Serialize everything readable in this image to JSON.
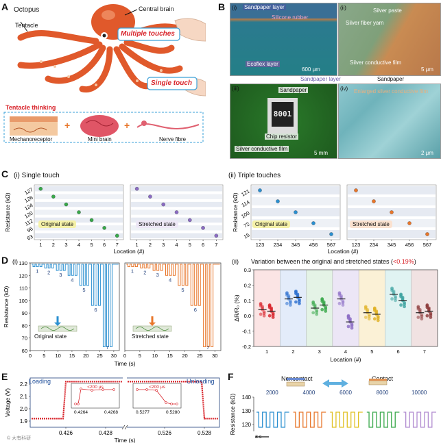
{
  "panelA": {
    "letter": "A",
    "octopus": "Octopus",
    "central_brain": "Central brain",
    "tentacle": "Tentacle",
    "multiple_touches": "Multiple touches",
    "single_touch": "Single touch",
    "tentacle_thinking": "Tentacle thinking",
    "mechanoreceptor": "Mechanoreceptor",
    "mini_brain": "Mini brain",
    "nerve_fibre": "Nerve fibre"
  },
  "panelB": {
    "letter": "B",
    "i": {
      "tag": "(i)",
      "sandpaper_layer": "Sandpaper layer",
      "silicone_rubber": "Silicone rubber",
      "ecoflex_layer": "Ecoflex layer",
      "scale": "600 μm"
    },
    "ii": {
      "tag": "(ii)",
      "silver_paste": "Silver paste",
      "silver_fiber_yarn": "Silver fiber yarn",
      "silver_film": "Silver conductive film",
      "scale": "5 μm"
    },
    "mid_sandpaper_layer": "Sandpaper layer",
    "mid_sandpaper": "Sandpaper",
    "iii": {
      "tag": "(iii)",
      "sandpaper": "Sandpaper",
      "chip_code": "8001",
      "chip_resistor": "Chip resistor",
      "silver_film": "Silver conductive film",
      "scale": "5 mm"
    },
    "iv": {
      "tag": "(iv)",
      "enlarged": "Enlarged silver conductive film",
      "scale": "2 μm"
    }
  },
  "panelC": {
    "letter": "C",
    "i_title": "(i) Single touch",
    "ii_title": "(ii) Triple touches",
    "ylabel": "Resistance (kΩ)",
    "xlabel": "Location (#)",
    "original": "Original state",
    "stretched": "Stretched state"
  },
  "panelD": {
    "letter": "D",
    "i_tag": "(i)",
    "ylabel": "Resistance (kΩ)",
    "xlabel": "Time (s)",
    "original": "Original state",
    "stretched": "Stretched state",
    "ii_tag": "(ii)",
    "ii_title_main": "Variation between the original and stretched states (",
    "ii_title_red": "<0.19%",
    "ii_title_end": ")",
    "ii_ylabel": "ΔR/R₀ (%)",
    "ii_xlabel": "Location (#)"
  },
  "panelE": {
    "letter": "E",
    "ylabel": "Voltage (V)",
    "xlabel": "Time (s)",
    "loading": "Loading",
    "unloading": "Unloading",
    "inset_note": "<200 μs",
    "watermark": "© 大有科研"
  },
  "panelF": {
    "letter": "F",
    "ylabel": "Resistance (kΩ)",
    "noncontact": "Noncontact",
    "contact": "Contact",
    "scale": "3 s"
  },
  "colors": {
    "blue": "#2a8fd0",
    "orange": "#e8762a",
    "green": "#38a84a",
    "purple": "#8b6cc4",
    "red": "#d8232a",
    "dark_green": "#2f7d2f",
    "teal": "#3ca3a0",
    "octopus": "#e0592b"
  },
  "chart_data": [
    {
      "id": "C-i-original",
      "type": "scatter",
      "title": "Single touch — Original state",
      "xlabel": "Location (#)",
      "ylabel": "Resistance (kΩ)",
      "x": [
        1,
        2,
        3,
        4,
        5,
        6,
        7
      ],
      "y": [
        127,
        126,
        124,
        120,
        112,
        96,
        63
      ],
      "ytick_labels": [
        "127",
        "126",
        "124",
        "120",
        "112",
        "96",
        "63"
      ],
      "xlim": [
        0.5,
        7.5
      ],
      "series_color": "green"
    },
    {
      "id": "C-i-stretched",
      "type": "scatter",
      "title": "Single touch — Stretched state",
      "xlabel": "Location (#)",
      "x": [
        1,
        2,
        3,
        4,
        5,
        6,
        7
      ],
      "y": [
        127,
        126,
        124,
        120,
        112,
        96,
        63
      ],
      "xlim": [
        0.5,
        7.5
      ],
      "series_color": "purple"
    },
    {
      "id": "C-ii-original",
      "type": "scatter",
      "title": "Triple touches — Original state",
      "xlabel": "Location (#)",
      "ylabel": "Resistance (kΩ)",
      "categories": [
        "123",
        "234",
        "345",
        "456",
        "567"
      ],
      "y": [
        121,
        114,
        100,
        72,
        15
      ],
      "ytick_labels": [
        "121",
        "114",
        "100",
        "72",
        "15"
      ],
      "series_color": "blue"
    },
    {
      "id": "C-ii-stretched",
      "type": "scatter",
      "title": "Triple touches — Stretched state",
      "xlabel": "Location (#)",
      "categories": [
        "123",
        "234",
        "345",
        "456",
        "567"
      ],
      "y": [
        121,
        114,
        100,
        72,
        15
      ],
      "series_color": "orange"
    },
    {
      "id": "D-i-original",
      "type": "line",
      "title": "Original state",
      "xlabel": "Time (s)",
      "ylabel": "Resistance (kΩ)",
      "xlim": [
        0,
        32
      ],
      "ylim": [
        60,
        130
      ],
      "xticks": [
        0,
        5,
        10,
        15,
        20,
        25,
        30
      ],
      "yticks": [
        60,
        70,
        80,
        90,
        100,
        110,
        120,
        130
      ],
      "touch_labels": [
        "1",
        "2",
        "3",
        "4",
        "5",
        "6",
        "7"
      ],
      "touch_minima": [
        127,
        126,
        124,
        120,
        112,
        96,
        63
      ],
      "baseline": 129,
      "series_color": "blue"
    },
    {
      "id": "D-i-stretched",
      "type": "line",
      "title": "Stretched state",
      "xlabel": "Time (s)",
      "xlim": [
        0,
        32
      ],
      "ylim": [
        60,
        130
      ],
      "xticks": [
        0,
        5,
        10,
        15,
        20,
        25,
        30
      ],
      "touch_labels": [
        "1",
        "2",
        "3",
        "4",
        "5",
        "6",
        "7"
      ],
      "touch_minima": [
        127,
        126,
        124,
        120,
        112,
        96,
        63
      ],
      "baseline": 129,
      "series_color": "orange"
    },
    {
      "id": "D-ii",
      "type": "scatter",
      "title": "Variation between the original and stretched states (<0.19%)",
      "xlabel": "Location (#)",
      "ylabel": "ΔR/R₀ (%)",
      "categories": [
        "1",
        "2",
        "3",
        "4",
        "5",
        "6",
        "7"
      ],
      "ylim": [
        -0.2,
        0.3
      ],
      "yticks": [
        -0.2,
        -0.1,
        0.0,
        0.1,
        0.2,
        0.3
      ],
      "series": [
        {
          "name": "original",
          "means": [
            0.04,
            0.11,
            0.05,
            0.11,
            0.02,
            0.14,
            0.02
          ]
        },
        {
          "name": "stretched",
          "means": [
            0.03,
            0.12,
            0.07,
            -0.04,
            0.01,
            0.1,
            0.03
          ]
        }
      ],
      "group_colors": [
        "#d8232a",
        "#2a6fd0",
        "#38a84a",
        "#8b6cc4",
        "#e0b020",
        "#3ca3a0",
        "#8c3a3a"
      ]
    },
    {
      "id": "E",
      "type": "line",
      "title": "Loading / Unloading response",
      "xlabel": "Time (s)",
      "ylabel": "Voltage (V)",
      "ylim": [
        1.85,
        2.25
      ],
      "yticks": [
        1.9,
        2.0,
        2.1,
        2.2
      ],
      "left_xticks": [
        "0.426",
        "0.428"
      ],
      "right_xticks": [
        "0.526",
        "0.528"
      ],
      "low_level": 1.92,
      "high_level": 2.22,
      "inset_left_xticks": [
        "0.4264",
        "0.4268"
      ],
      "inset_right_xticks": [
        "0.5277",
        "0.5280"
      ],
      "response_time": "<200 μs",
      "series_color": "#d8232a"
    },
    {
      "id": "F",
      "type": "line",
      "title": "Noncontact / Contact switching",
      "ylabel": "Resistance (kΩ)",
      "ylim": [
        115,
        140
      ],
      "yticks": [
        120,
        130,
        140
      ],
      "segments": [
        {
          "label": "2000",
          "color": "#2a8fd0"
        },
        {
          "label": "4000",
          "color": "#e8762a"
        },
        {
          "label": "6000",
          "color": "#e0c020"
        },
        {
          "label": "8000",
          "color": "#38a84a"
        },
        {
          "label": "10000",
          "color": "#b08ad0"
        }
      ],
      "high": 129,
      "low": 118
    }
  ]
}
